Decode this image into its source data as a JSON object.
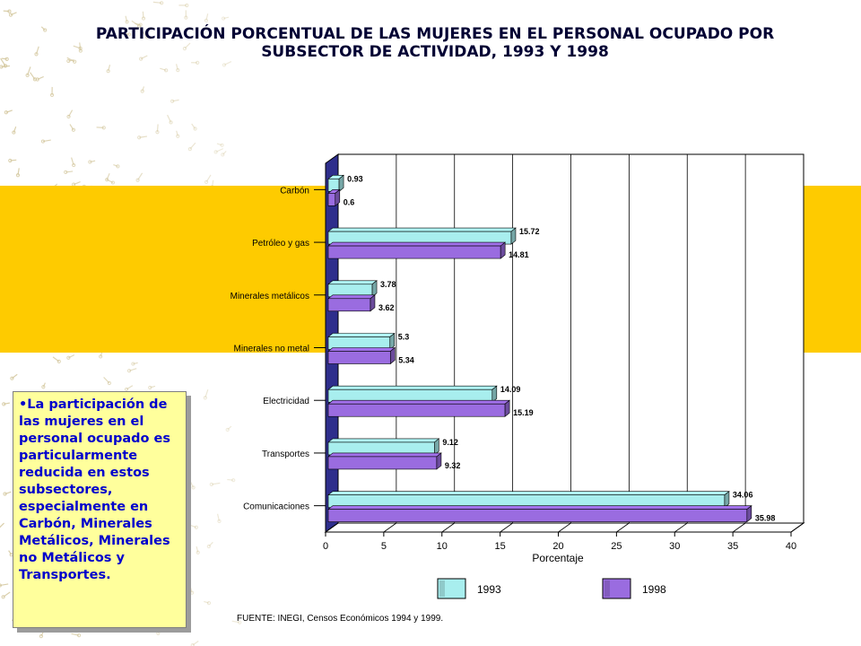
{
  "title": {
    "line1": "PARTICIPACIÓN PORCENTUAL DE LAS MUJERES EN EL PERSONAL OCUPADO POR",
    "line2": "SUBSECTOR DE ACTIVIDAD, 1993 Y 1998"
  },
  "note": "•La participación de las mujeres en el personal ocupado es particularmente reducida en estos subsectores, especialmente en Carbón, Minerales Metálicos, Minerales no Metálicos y Transportes.",
  "source": "FUENTE: INEGI, Censos Económicos 1994 y 1999.",
  "colors": {
    "band": "#fecb00",
    "series_1993": "#a8eeee",
    "series_1998": "#9a6ce0",
    "note_text": "#0000cc",
    "axis_wall": "#2e2e8c"
  },
  "chart_data": {
    "type": "bar",
    "orientation": "horizontal",
    "categories": [
      "Carbón",
      "Petróleo y gas",
      "Minerales metálicos",
      "Minerales no metal",
      "Electricidad",
      "Transportes",
      "Comunicaciones"
    ],
    "series": [
      {
        "name": "1993",
        "values": [
          0.93,
          15.72,
          3.78,
          5.3,
          14.09,
          9.12,
          34.06
        ]
      },
      {
        "name": "1998",
        "values": [
          0.6,
          14.81,
          3.62,
          5.34,
          15.19,
          9.32,
          35.98
        ]
      }
    ],
    "value_labels": {
      "1993": [
        "0.93",
        "15.72",
        "3.78",
        "5.3",
        "14.09",
        "9.12",
        "34.06"
      ],
      "1998": [
        "0.6",
        "14.81",
        "3.62",
        "5.34",
        "15.19",
        "9.32",
        "35.98"
      ]
    },
    "xlabel": "Porcentaje",
    "ylabel": "",
    "xlim": [
      0,
      40
    ],
    "xticks": [
      "0",
      "5",
      "10",
      "15",
      "20",
      "25",
      "30",
      "35",
      "40"
    ],
    "grid": true,
    "legend": "bottom"
  }
}
